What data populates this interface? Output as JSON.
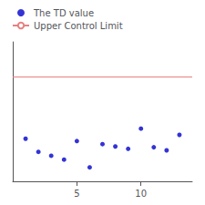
{
  "chart_data": {
    "type": "scatter",
    "x": [
      1,
      2,
      3,
      4,
      5,
      6,
      7,
      8,
      9,
      10,
      11,
      12,
      13
    ],
    "series": [
      {
        "name": "The TD value",
        "type": "scatter",
        "color": "#0000cc",
        "marker": "dot",
        "values": [
          0.55,
          0.38,
          0.33,
          0.28,
          0.52,
          0.18,
          0.48,
          0.45,
          0.42,
          0.68,
          0.44,
          0.4,
          0.6
        ]
      },
      {
        "name": "Upper Control Limit",
        "type": "hline",
        "color": "#e88080",
        "line_style": "solid",
        "value": 1.35
      }
    ],
    "xlim": [
      0,
      14
    ],
    "xticks": [
      5,
      10
    ],
    "ylim": [
      0,
      1.8
    ],
    "yticks": [],
    "tick_labels": "x",
    "grid": false,
    "legend": "upper left"
  }
}
